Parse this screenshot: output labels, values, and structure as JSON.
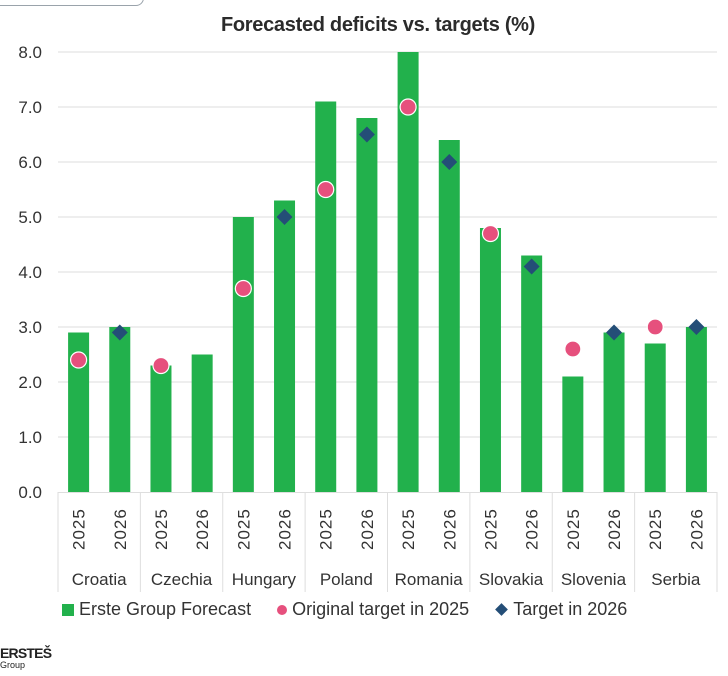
{
  "colors": {
    "forecast": "#22b14c",
    "target_2025": "#e6507d",
    "target_2026": "#244e77",
    "grid": "#dedede",
    "text": "#333333"
  },
  "logo": {
    "name": "ERSTE",
    "symbol": "Š",
    "sub": "Group"
  },
  "chart_data": {
    "type": "bar",
    "title": "Forecasted deficits vs. targets (%)",
    "xlabel": "",
    "ylabel": "",
    "ylim": [
      0,
      8
    ],
    "yticks": [
      "0.0",
      "1.0",
      "2.0",
      "3.0",
      "4.0",
      "5.0",
      "6.0",
      "7.0",
      "8.0"
    ],
    "grid": true,
    "legend_position": "bottom",
    "groups": [
      "Croatia",
      "Czechia",
      "Hungary",
      "Poland",
      "Romania",
      "Slovakia",
      "Slovenia",
      "Serbia"
    ],
    "sub_categories": [
      "2025",
      "2026"
    ],
    "series": [
      {
        "name": "Erste Group Forecast",
        "type": "bar",
        "values": [
          [
            2.9,
            3.0
          ],
          [
            2.3,
            2.5
          ],
          [
            5.0,
            5.3
          ],
          [
            7.1,
            6.8
          ],
          [
            8.0,
            6.4
          ],
          [
            4.8,
            4.3
          ],
          [
            2.1,
            2.9
          ],
          [
            2.7,
            3.0
          ]
        ]
      },
      {
        "name": "Original target in 2025",
        "type": "scatter-circle",
        "values": [
          [
            2.4,
            null
          ],
          [
            2.3,
            null
          ],
          [
            3.7,
            null
          ],
          [
            5.5,
            null
          ],
          [
            7.0,
            null
          ],
          [
            4.7,
            null
          ],
          [
            2.6,
            null
          ],
          [
            3.0,
            null
          ]
        ]
      },
      {
        "name": "Target in 2026",
        "type": "scatter-diamond",
        "values": [
          [
            null,
            2.9
          ],
          [
            null,
            null
          ],
          [
            null,
            5.0
          ],
          [
            null,
            6.5
          ],
          [
            null,
            6.0
          ],
          [
            null,
            4.1
          ],
          [
            null,
            2.9
          ],
          [
            null,
            3.0
          ]
        ]
      }
    ]
  }
}
